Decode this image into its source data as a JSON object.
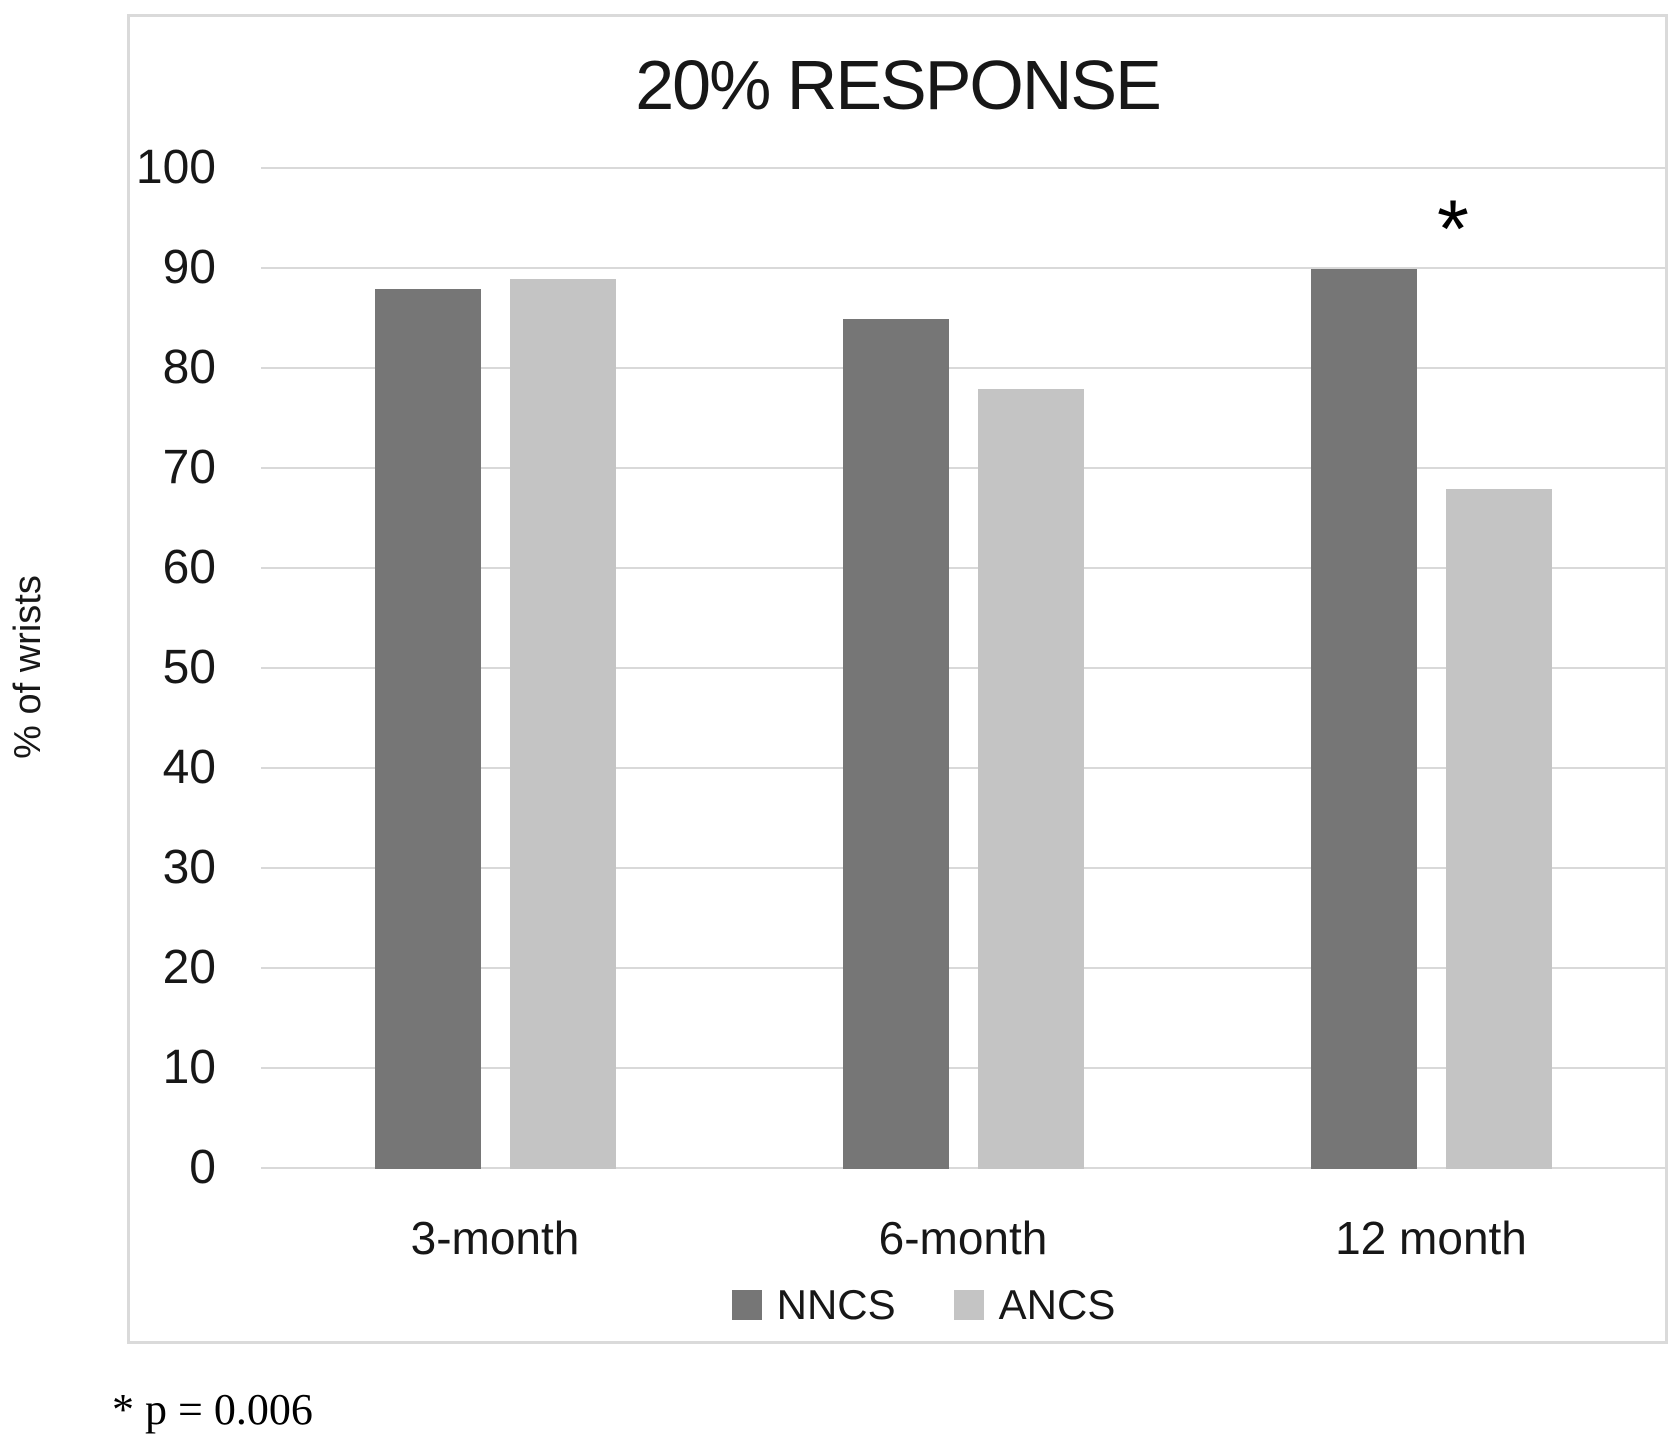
{
  "figure": {
    "footnote": "* p = 0.006"
  },
  "chart_data": {
    "type": "bar",
    "title": "20% RESPONSE",
    "categories": [
      "3-month",
      "6-month",
      "12 month"
    ],
    "series": [
      {
        "name": "NNCS",
        "color": "#767676",
        "values": [
          88,
          85,
          90
        ]
      },
      {
        "name": "ANCS",
        "color": "#c4c4c4",
        "values": [
          89,
          78,
          68
        ]
      }
    ],
    "xlabel": "",
    "ylabel": "% of wrists",
    "ylim": [
      0,
      100
    ],
    "yticks": [
      100,
      90,
      80,
      70,
      60,
      50,
      40,
      30,
      20,
      10,
      0
    ],
    "grid": true,
    "gridline_color": "#d9d9d9",
    "border_color": "#dadada",
    "legend_position": "bottom",
    "annotations": [
      {
        "text": "*",
        "category": "12 month",
        "series": "NNCS",
        "note": "p = 0.006"
      }
    ]
  }
}
